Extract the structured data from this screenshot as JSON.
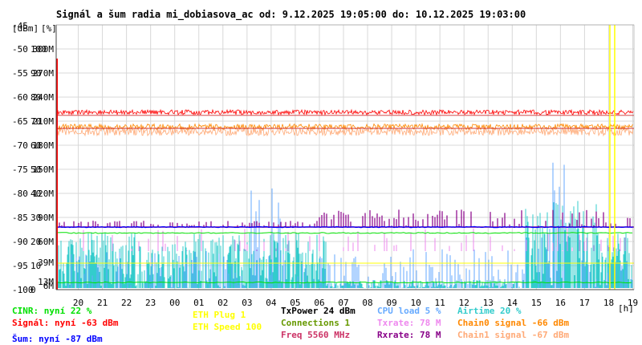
{
  "chart_data": {
    "type": "line",
    "title": "Signál a šum radia mi_dobiasova_ac od: 9.12.2025 19:05:00 do: 10.12.2025 19:03:00",
    "ylabel_left": "[dBm]",
    "ylabel_right": "[%]",
    "xunit": "[h]",
    "ylim": [
      -100,
      -45
    ],
    "y_dbm_ticks": [
      "-45",
      "-50",
      "-55",
      "-60",
      "-65",
      "-70",
      "-75",
      "-80",
      "-85",
      "-90",
      "-95",
      "-100"
    ],
    "y_pct_ticks": [
      "",
      "100",
      "90",
      "80",
      "70",
      "60",
      "50",
      "40",
      "30",
      "20",
      "10",
      "0"
    ],
    "y_rate_ticks": [
      "",
      "300M",
      "270M",
      "240M",
      "210M",
      "180M",
      "150M",
      "120M",
      "90M",
      "60M",
      "",
      ""
    ],
    "y_rate_small": [
      {
        "label": "39M",
        "dbm": -94.3
      },
      {
        "label": "13M",
        "dbm": -98.3
      },
      {
        "label": "6M",
        "dbm": -99.2
      }
    ],
    "x_ticks": [
      "20",
      "21",
      "22",
      "23",
      "00",
      "01",
      "02",
      "03",
      "04",
      "05",
      "06",
      "07",
      "08",
      "09",
      "10",
      "11",
      "12",
      "13",
      "14",
      "15",
      "16",
      "17",
      "18",
      "19"
    ],
    "x_start_hour": 19.0833,
    "x_end_hour": 43.05,
    "grid": true,
    "legend_position": "bottom",
    "series": [
      {
        "name": "CINR: nyní 22 %",
        "color": "#00e000",
        "pct_level": 22
      },
      {
        "name": "Signál: nyní -63 dBm",
        "color": "#ff0000",
        "dbm_level": -63
      },
      {
        "name": "Šum: nyní -87 dBm",
        "color": "#0000ff",
        "dbm_level": -87
      },
      {
        "name": "ETH Plug 1",
        "color": "#ffff00",
        "pct_level": 10
      },
      {
        "name": "ETH Speed 100",
        "color": "#ffff00"
      },
      {
        "name": "TxPower 24 dBm",
        "color": "#000000"
      },
      {
        "name": "Connections 1",
        "color": "#669900"
      },
      {
        "name": "Freq 5560 MHz",
        "color": "#cc3366"
      },
      {
        "name": "CPU load 5 %",
        "color": "#66aaff",
        "pct_level": 5
      },
      {
        "name": "Txrate: 78 M",
        "color": "#ee88ee",
        "rate_m": 78
      },
      {
        "name": "Rxrate: 78 M",
        "color": "#880088",
        "rate_m": 78
      },
      {
        "name": "Airtime 20 %",
        "color": "#33cccc",
        "pct_level": 20
      },
      {
        "name": "Chain0 signal -66 dBm",
        "color": "#ff8800",
        "dbm_level": -66
      },
      {
        "name": "Chain1 signal -67 dBm",
        "color": "#ffaa77",
        "dbm_level": -67
      }
    ],
    "annotations": [
      {
        "type": "vline",
        "x_hour": 42.05,
        "color": "#ffff00"
      },
      {
        "type": "vline",
        "x_hour": 42.25,
        "color": "#ffff00"
      }
    ]
  }
}
